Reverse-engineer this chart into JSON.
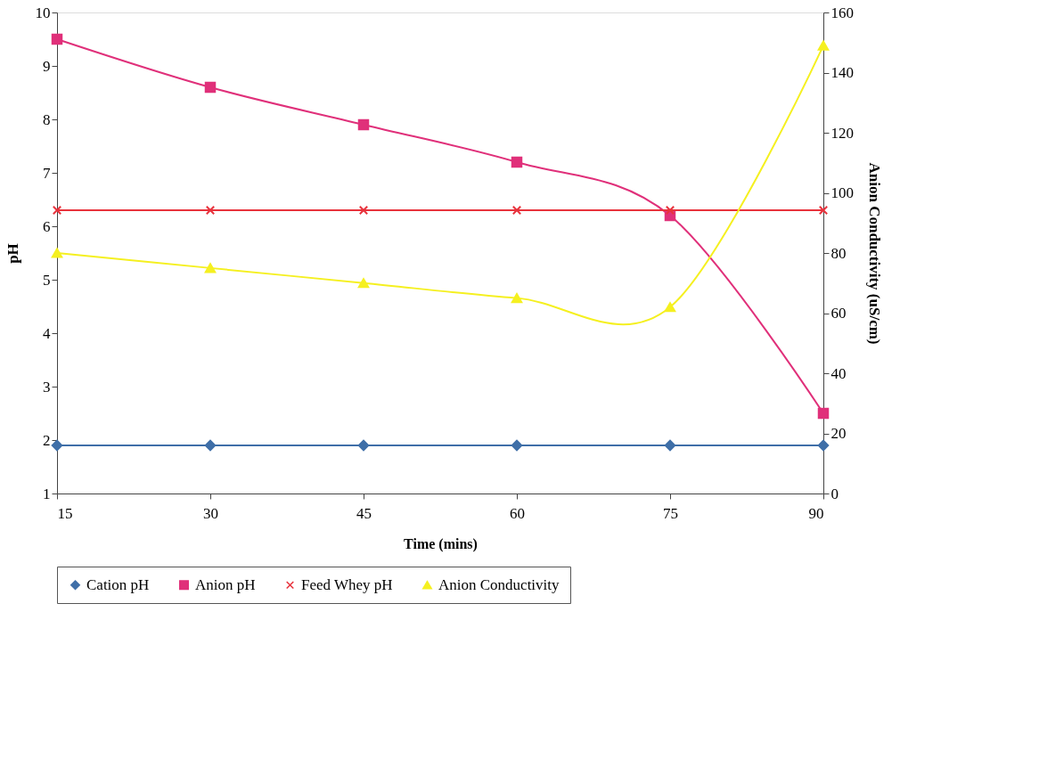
{
  "chart_data": {
    "type": "line",
    "xlabel": "Time (mins)",
    "ylabel": "pH",
    "y2label": "Anion Conductivity (uS/cm)",
    "x": [
      15,
      30,
      45,
      60,
      75,
      90
    ],
    "xlim": [
      15,
      90
    ],
    "xticks": [
      15,
      30,
      45,
      60,
      75,
      90
    ],
    "ylim": [
      1,
      10
    ],
    "yticks": [
      1,
      2,
      3,
      4,
      5,
      6,
      7,
      8,
      9,
      10
    ],
    "y2lim": [
      0,
      160
    ],
    "y2ticks": [
      0,
      20,
      40,
      60,
      80,
      100,
      120,
      140,
      160
    ],
    "grid": false,
    "legend": "bottom",
    "line_style": "solid",
    "series": [
      {
        "name": "Cation pH",
        "color": "#3f6fa8",
        "marker": "diamond",
        "values": [
          1.9,
          1.9,
          1.9,
          1.9,
          1.9,
          1.9
        ]
      },
      {
        "name": "Anion pH",
        "color": "#e0307a",
        "marker": "square",
        "values": [
          9.5,
          8.6,
          7.9,
          7.2,
          6.2,
          2.5
        ]
      },
      {
        "name": "Feed Whey pH",
        "color": "#e8323c",
        "marker": "cross",
        "values": [
          6.3,
          6.3,
          6.3,
          6.3,
          6.3,
          6.3
        ]
      },
      {
        "name": "Anion Conductivity",
        "color": "#f5f020",
        "marker": "triangle",
        "axis": "y2",
        "values": [
          80,
          75,
          70,
          65,
          62,
          149
        ]
      }
    ]
  }
}
